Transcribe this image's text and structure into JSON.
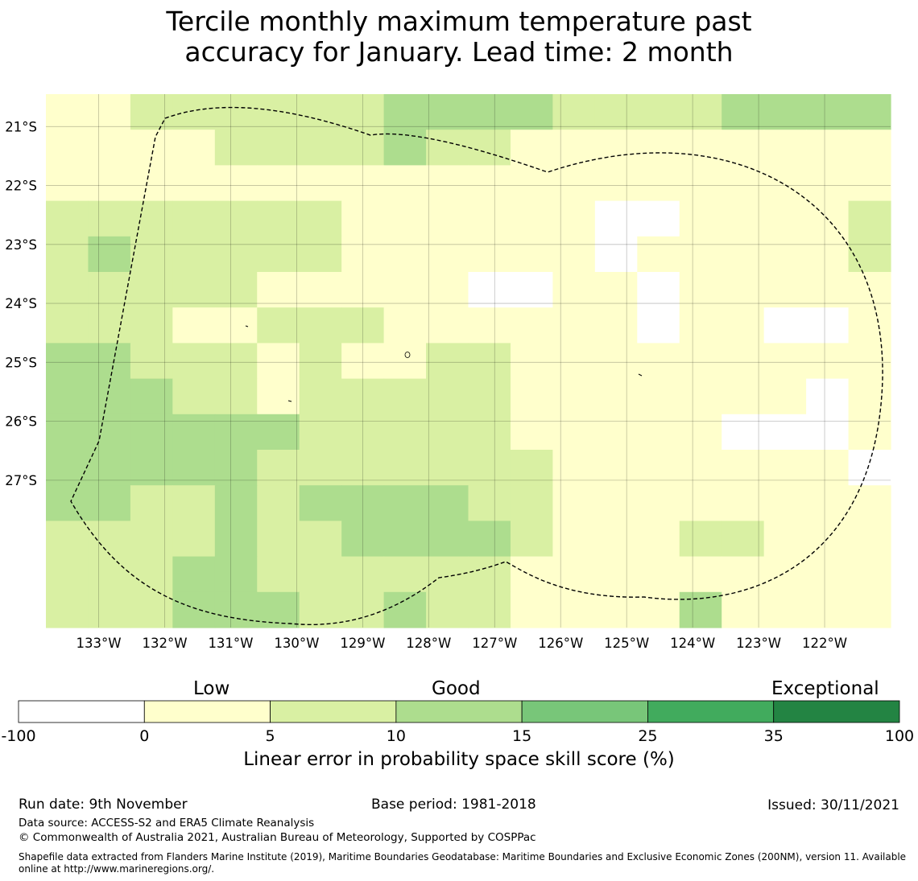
{
  "title": {
    "line1": "Tercile monthly maximum temperature past",
    "line2": "accuracy for January. Lead time: 2 month"
  },
  "map": {
    "lon_range": [
      -133.8,
      -121.0
    ],
    "lat_range": [
      -29.5,
      -20.45
    ],
    "lon_ticks": [
      "133°W",
      "132°W",
      "131°W",
      "130°W",
      "129°W",
      "128°W",
      "127°W",
      "126°W",
      "125°W",
      "124°W",
      "123°W",
      "122°W"
    ],
    "lat_ticks": [
      "21°S",
      "22°S",
      "23°S",
      "24°S",
      "25°S",
      "26°S",
      "27°S"
    ],
    "category_colors": [
      "#ffffff",
      "#ffffcc",
      "#d9f0a3",
      "#addd8e",
      "#78c679",
      "#41ab5d",
      "#238443"
    ],
    "grid_rows": [
      "11222222333322223333",
      "11112222322111111111",
      "11111111111111111111",
      "22222221111110011112",
      "23222221111110111112",
      "22222111110011011111",
      "22211222111111011001",
      "33222121122111111111",
      "33322122222111111101",
      "33333322222111110001",
      "33333222222211111110",
      "33223233332211111111",
      "22223223333211122111",
      "22233222222111111111",
      "22233322322111131111"
    ],
    "boundary_style": "dashed"
  },
  "colorbar": {
    "category_words": [
      "Low",
      "Good",
      "Exceptional"
    ],
    "ticks": [
      "-100",
      "0",
      "5",
      "10",
      "15",
      "25",
      "35",
      "100"
    ],
    "colors": [
      "#ffffff",
      "#ffffcc",
      "#d9f0a3",
      "#addd8e",
      "#78c679",
      "#41ab5d",
      "#238443"
    ],
    "label": "Linear error in probability space skill score (%)"
  },
  "footer": {
    "run_date": "Run date: 9th November",
    "base_period": "Base period: 1981-2018",
    "issued": "Issued: 30/11/2021",
    "data_source": "Data source: ACCESS-S2 and ERA5 Climate Reanalysis",
    "copyright": "© Commonwealth of Australia 2021, Australian Bureau of Meteorology, Supported by COSPPac",
    "shapefile": "Shapefile data extracted from Flanders Marine Institute (2019), Maritime Boundaries Geodatabase: Maritime Boundaries and Exclusive Economic Zones (200NM), version 11. Available online at http://www.marineregions.org/."
  }
}
